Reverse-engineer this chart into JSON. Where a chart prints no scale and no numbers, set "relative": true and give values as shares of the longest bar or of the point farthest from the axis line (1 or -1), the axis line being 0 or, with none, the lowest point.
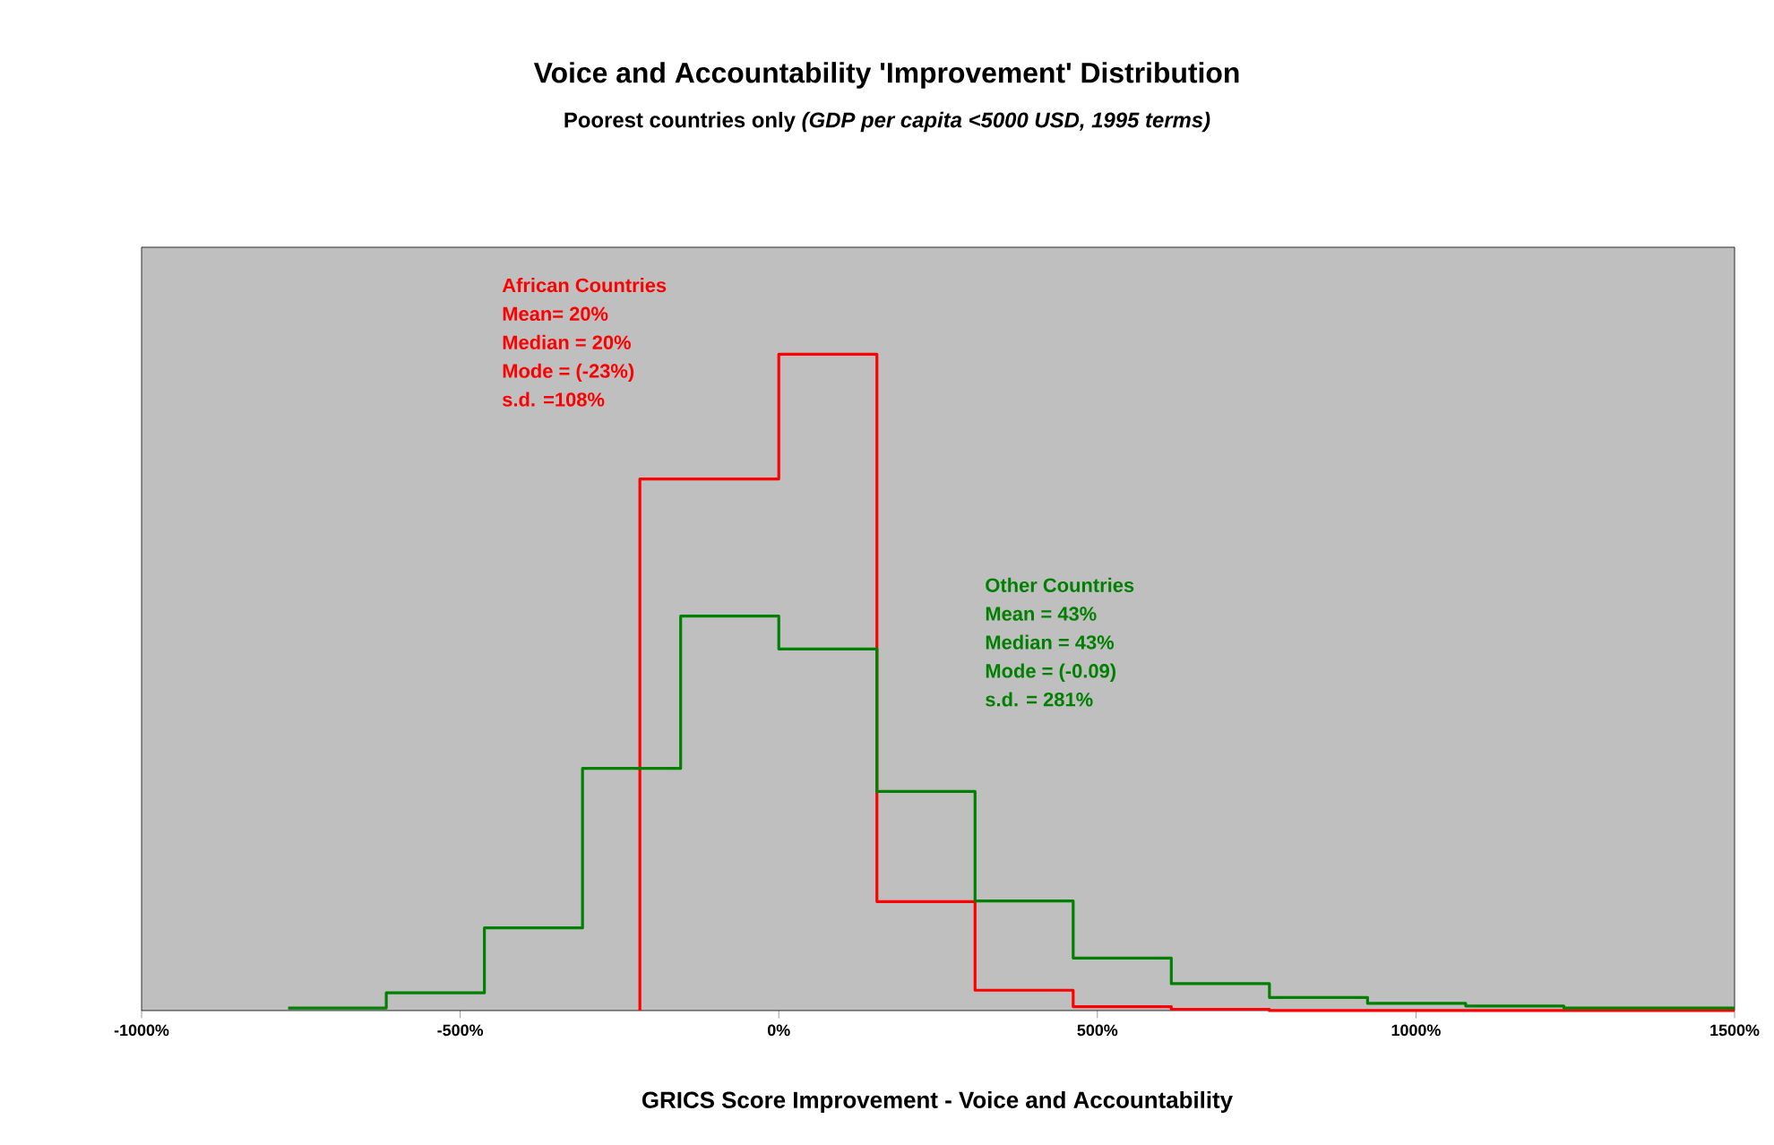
{
  "chart_data": {
    "type": "step",
    "title": "Voice and Accountability 'Improvement' Distribution",
    "subtitle": "Poorest countries only *(GDP per capita <5000 USD, 1995 terms)*",
    "xlabel": "GRICS Score Improvement - Voice and Accountability",
    "relative": true,
    "xlim": [
      -1000,
      1500
    ],
    "xticks": [
      {
        "value": -1000,
        "label": "-1000%"
      },
      {
        "value": -500,
        "label": "-500%"
      },
      {
        "value": 0,
        "label": "0%"
      },
      {
        "value": 500,
        "label": "500%"
      },
      {
        "value": 1000,
        "label": "1000%"
      },
      {
        "value": 1500,
        "label": "1500%"
      }
    ],
    "grid": false,
    "legend": false,
    "series": [
      {
        "name": "African Countries",
        "color": "#ff0000",
        "x": [
          -218,
          -218,
          0,
          154,
          308,
          462,
          616,
          770,
          924,
          1078,
          1232,
          1500
        ],
        "values": [
          0,
          0.81,
          1,
          0.166,
          0.031,
          0.006,
          0.002,
          0,
          0,
          0,
          0,
          0
        ]
      },
      {
        "name": "Other Countries",
        "color": "#008000",
        "x": [
          -770,
          -616,
          -462,
          -308,
          -154,
          0,
          154,
          308,
          462,
          616,
          770,
          924,
          1078,
          1232,
          1500
        ],
        "values": [
          0.004,
          0.027,
          0.126,
          0.369,
          0.601,
          0.551,
          0.334,
          0.167,
          0.08,
          0.041,
          0.02,
          0.011,
          0.007,
          0.004,
          0.004
        ]
      }
    ],
    "annotations": [
      "Mean= 20%",
      "Median = 20%",
      "Mode = (-23%)",
      "s.d. =108%",
      "Mean = 43%",
      "Median = 43%",
      "Mode = (-0.09)",
      "s.d. = 281%"
    ]
  }
}
